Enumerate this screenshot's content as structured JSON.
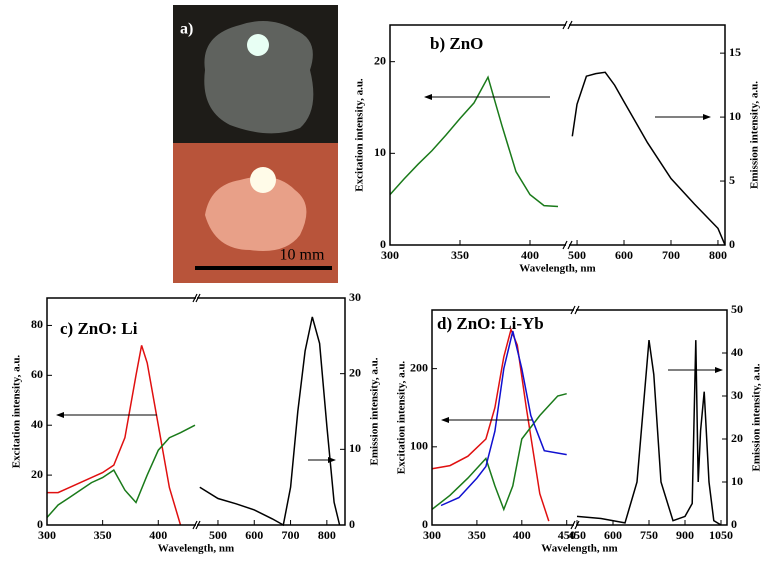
{
  "chart_data": [
    {
      "type": "photo",
      "label": "a)",
      "scale_label": "10 mm"
    },
    {
      "type": "line",
      "title": "b) ZnO",
      "xlabel": "Wavelength, nm",
      "ylabel": "Excitation intensity, a.u.",
      "y2label": "Emission intensity, a.u.",
      "x_segments": [
        {
          "xlim": [
            300,
            425
          ],
          "xticks": [
            300,
            350,
            400
          ]
        },
        {
          "xlim": [
            485,
            815
          ],
          "xticks": [
            500,
            600,
            700,
            800
          ]
        }
      ],
      "ylim": [
        0,
        24
      ],
      "yticks": [
        0,
        10,
        20
      ],
      "y2lim": [
        0,
        17.2
      ],
      "y2ticks": [
        0,
        5,
        10,
        15
      ],
      "series": [
        {
          "color": "#1a7a1a",
          "segment": 0,
          "x": [
            300,
            310,
            320,
            330,
            340,
            350,
            360,
            370,
            380,
            390,
            400,
            410,
            420
          ],
          "values": [
            5.5,
            7.2,
            8.8,
            10.3,
            12,
            13.8,
            15.5,
            18.3,
            13,
            8,
            5.5,
            4.3,
            4.2
          ]
        },
        {
          "color": "#000000",
          "segment": 1,
          "axis": "y2",
          "x": [
            490,
            500,
            520,
            540,
            560,
            580,
            600,
            650,
            700,
            750,
            800,
            815
          ],
          "values": [
            8.5,
            11,
            13.2,
            13.4,
            13.5,
            12.5,
            11.2,
            8,
            5.2,
            3.2,
            1.3,
            0
          ]
        }
      ]
    },
    {
      "type": "line",
      "title": "c) ZnO: Li",
      "xlabel": "Wavelength, nm",
      "ylabel": "Excitation intensity, a.u.",
      "y2label": "Emission  intensity, a.u.",
      "x_segments": [
        {
          "xlim": [
            300,
            433
          ],
          "xticks": [
            300,
            350,
            400
          ]
        },
        {
          "xlim": [
            445,
            850
          ],
          "xticks": [
            500,
            600,
            700,
            800
          ]
        }
      ],
      "ylim": [
        0,
        91
      ],
      "yticks": [
        0,
        20,
        40,
        60,
        80
      ],
      "y2lim": [
        0,
        30
      ],
      "y2ticks": [
        0,
        10,
        20,
        30
      ],
      "series": [
        {
          "color": "#e01010",
          "segment": 0,
          "x": [
            300,
            310,
            320,
            330,
            340,
            350,
            360,
            370,
            380,
            385,
            390,
            400,
            410,
            420
          ],
          "values": [
            13,
            13,
            15,
            17,
            19,
            21,
            24,
            35,
            60,
            72,
            65,
            40,
            15,
            0
          ]
        },
        {
          "color": "#1a7a1a",
          "segment": 0,
          "x": [
            300,
            310,
            320,
            330,
            340,
            350,
            360,
            370,
            380,
            390,
            400,
            410,
            420,
            433
          ],
          "values": [
            3,
            8,
            11,
            14,
            17,
            19,
            22,
            14,
            9,
            20,
            30,
            35,
            37,
            40
          ]
        },
        {
          "color": "#000000",
          "segment": 1,
          "axis": "y2",
          "x": [
            450,
            500,
            550,
            600,
            650,
            680,
            700,
            720,
            740,
            760,
            780,
            800,
            820,
            835
          ],
          "values": [
            5,
            3.5,
            2.8,
            2,
            0.8,
            0,
            5,
            15,
            23,
            27.5,
            24,
            13,
            3,
            0
          ]
        }
      ]
    },
    {
      "type": "line",
      "title": "d) ZnO: Li-Yb",
      "xlabel": "Wavelength, nm",
      "ylabel": "Excitation intensity, a.u.",
      "y2label": "Emission intensity, a.u.",
      "x_segments": [
        {
          "xlim": [
            300,
            457
          ],
          "xticks": [
            300,
            350,
            400,
            450
          ]
        },
        {
          "xlim": [
            450,
            1075
          ],
          "xticks": [
            450,
            600,
            750,
            900,
            1050
          ]
        }
      ],
      "ylim": [
        0,
        275
      ],
      "yticks": [
        0,
        100,
        200
      ],
      "y2lim": [
        0,
        50
      ],
      "y2ticks": [
        0,
        10,
        20,
        30,
        40,
        50
      ],
      "series": [
        {
          "color": "#e01010",
          "segment": 0,
          "x": [
            300,
            320,
            340,
            360,
            370,
            380,
            388,
            395,
            405,
            420,
            430
          ],
          "values": [
            72,
            76,
            88,
            110,
            150,
            215,
            250,
            230,
            150,
            40,
            5
          ]
        },
        {
          "color": "#1a7a1a",
          "segment": 0,
          "x": [
            300,
            320,
            340,
            360,
            370,
            380,
            390,
            400,
            420,
            440,
            450
          ],
          "values": [
            20,
            38,
            60,
            85,
            50,
            20,
            50,
            110,
            140,
            165,
            168
          ]
        },
        {
          "color": "#1010d0",
          "segment": 0,
          "x": [
            310,
            330,
            350,
            360,
            370,
            380,
            390,
            400,
            410,
            425,
            450
          ],
          "values": [
            25,
            35,
            60,
            75,
            120,
            200,
            248,
            200,
            140,
            95,
            90
          ]
        },
        {
          "color": "#000000",
          "segment": 1,
          "axis": "y2",
          "x": [
            450,
            550,
            650,
            700,
            750,
            770,
            800,
            850,
            900,
            930,
            945,
            955,
            965,
            980,
            1000,
            1020,
            1050
          ],
          "values": [
            2,
            1.5,
            0.5,
            10,
            43,
            35,
            10,
            1,
            2,
            5,
            43,
            10,
            22,
            31,
            10,
            1,
            0
          ]
        }
      ]
    }
  ]
}
